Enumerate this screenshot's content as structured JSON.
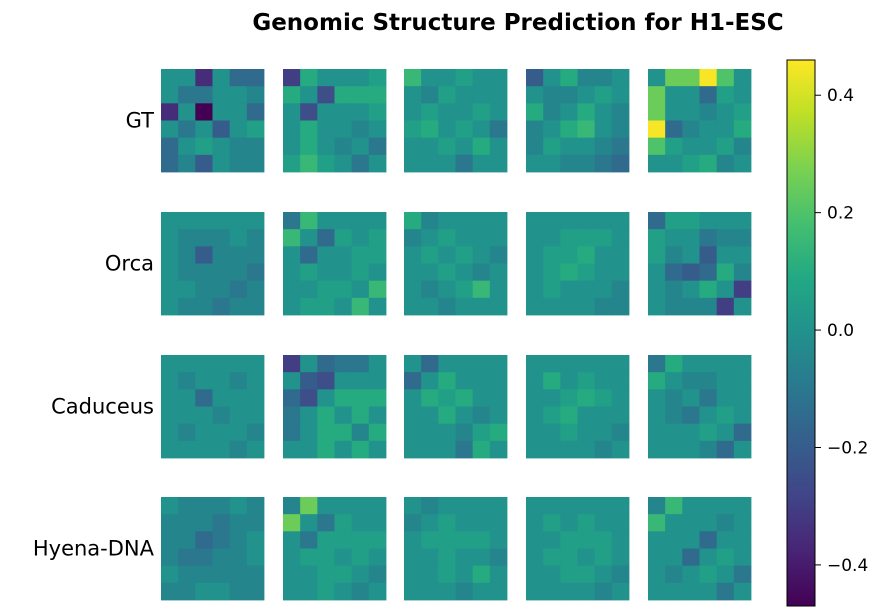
{
  "chart_data": {
    "type": "heatmap",
    "title": "Genomic Structure Prediction for H1-ESC",
    "rows": [
      "GT",
      "Orca",
      "Caduceus",
      "Hyena-DNA"
    ],
    "columns": 5,
    "grid_size": 6,
    "colormap": "viridis",
    "vmin": -0.47,
    "vmax": 0.46,
    "colorbar": {
      "ticks": [
        0.4,
        0.2,
        0.0,
        -0.2,
        -0.4
      ],
      "tick_labels": [
        "0.4",
        "0.2",
        "0.0",
        "−0.2",
        "−0.4"
      ]
    },
    "matrices": [
      [
        [
          [
            0.0,
            0.0,
            -0.35,
            0.0,
            -0.15,
            -0.15
          ],
          [
            0.0,
            -0.1,
            -0.1,
            0.0,
            0.0,
            -0.05
          ],
          [
            -0.35,
            0.0,
            -0.47,
            0.0,
            0.0,
            -0.15
          ],
          [
            0.0,
            -0.1,
            0.0,
            -0.2,
            0.0,
            0.05
          ],
          [
            -0.15,
            0.0,
            0.05,
            0.0,
            -0.05,
            -0.05
          ],
          [
            -0.15,
            -0.05,
            -0.2,
            0.0,
            -0.05,
            -0.05
          ]
        ],
        [
          [
            -0.3,
            0.1,
            0.0,
            0.0,
            0.0,
            0.05
          ],
          [
            0.1,
            0.0,
            -0.25,
            0.1,
            0.1,
            0.1
          ],
          [
            0.0,
            -0.25,
            0.0,
            0.0,
            0.0,
            0.05
          ],
          [
            0.0,
            0.1,
            0.0,
            0.0,
            -0.05,
            0.0
          ],
          [
            0.0,
            0.1,
            0.0,
            -0.05,
            0.0,
            -0.1
          ],
          [
            0.05,
            0.15,
            0.05,
            0.0,
            -0.1,
            0.0
          ]
        ],
        [
          [
            0.15,
            0.0,
            0.0,
            0.05,
            0.0,
            0.0
          ],
          [
            0.0,
            -0.05,
            0.05,
            0.0,
            0.0,
            0.0
          ],
          [
            0.0,
            0.05,
            0.0,
            0.0,
            0.05,
            0.0
          ],
          [
            0.05,
            0.1,
            0.0,
            0.05,
            0.0,
            -0.1
          ],
          [
            0.0,
            0.0,
            0.05,
            0.0,
            0.1,
            0.0
          ],
          [
            0.0,
            0.0,
            0.0,
            -0.1,
            0.0,
            0.0
          ]
        ],
        [
          [
            -0.2,
            0.0,
            0.1,
            -0.05,
            -0.05,
            0.0
          ],
          [
            0.0,
            -0.05,
            -0.05,
            0.0,
            0.05,
            0.0
          ],
          [
            0.1,
            -0.05,
            0.0,
            0.1,
            0.0,
            -0.05
          ],
          [
            -0.05,
            0.0,
            0.1,
            0.15,
            0.0,
            -0.05
          ],
          [
            -0.05,
            0.05,
            0.0,
            0.0,
            -0.05,
            -0.1
          ],
          [
            0.0,
            0.0,
            -0.05,
            -0.05,
            -0.1,
            -0.15
          ]
        ],
        [
          [
            0.0,
            0.25,
            0.25,
            0.45,
            0.2,
            0.0
          ],
          [
            0.25,
            0.0,
            0.0,
            -0.15,
            0.05,
            0.0
          ],
          [
            0.25,
            0.0,
            0.0,
            -0.05,
            0.0,
            0.05
          ],
          [
            0.45,
            -0.15,
            -0.05,
            0.0,
            0.0,
            0.1
          ],
          [
            0.2,
            0.05,
            0.0,
            0.0,
            0.05,
            -0.05
          ],
          [
            0.0,
            0.0,
            0.05,
            0.1,
            -0.05,
            0.0
          ]
        ]
      ],
      [
        [
          [
            0.0,
            0.0,
            0.0,
            0.0,
            0.0,
            0.0
          ],
          [
            0.0,
            -0.05,
            -0.05,
            -0.05,
            0.0,
            -0.05
          ],
          [
            0.0,
            -0.05,
            -0.2,
            -0.05,
            -0.05,
            -0.05
          ],
          [
            0.0,
            -0.05,
            -0.05,
            -0.05,
            -0.05,
            -0.1
          ],
          [
            0.0,
            0.0,
            -0.05,
            -0.05,
            -0.1,
            -0.05
          ],
          [
            0.0,
            -0.05,
            -0.05,
            -0.1,
            -0.05,
            -0.05
          ]
        ],
        [
          [
            -0.1,
            0.15,
            0.0,
            0.0,
            0.0,
            0.0
          ],
          [
            0.15,
            0.0,
            -0.15,
            0.05,
            0.0,
            0.05
          ],
          [
            0.0,
            -0.15,
            0.0,
            0.0,
            0.05,
            0.05
          ],
          [
            0.0,
            0.05,
            0.0,
            0.0,
            0.05,
            0.0
          ],
          [
            0.0,
            0.0,
            0.05,
            0.05,
            0.0,
            0.15
          ],
          [
            0.0,
            0.05,
            0.05,
            0.0,
            0.15,
            0.0
          ]
        ],
        [
          [
            0.1,
            -0.05,
            0.0,
            0.0,
            0.0,
            0.0
          ],
          [
            -0.05,
            0.0,
            0.05,
            0.0,
            0.0,
            0.0
          ],
          [
            0.0,
            0.05,
            0.0,
            0.05,
            0.0,
            -0.05
          ],
          [
            0.0,
            0.0,
            0.05,
            0.0,
            -0.05,
            0.0
          ],
          [
            0.0,
            -0.05,
            0.0,
            0.05,
            0.15,
            0.0
          ],
          [
            0.0,
            0.0,
            -0.05,
            0.0,
            0.0,
            0.0
          ]
        ],
        [
          [
            0.0,
            0.0,
            0.0,
            0.0,
            0.0,
            0.0
          ],
          [
            0.0,
            0.0,
            0.05,
            0.05,
            0.05,
            0.0
          ],
          [
            0.0,
            0.05,
            0.05,
            0.1,
            0.0,
            0.0
          ],
          [
            0.0,
            0.05,
            0.1,
            0.05,
            0.0,
            0.0
          ],
          [
            0.0,
            0.05,
            0.0,
            0.0,
            0.0,
            -0.05
          ],
          [
            0.0,
            0.0,
            0.0,
            0.0,
            -0.05,
            -0.05
          ]
        ],
        [
          [
            -0.15,
            0.05,
            0.05,
            0.0,
            0.0,
            0.0
          ],
          [
            0.05,
            0.0,
            0.0,
            -0.1,
            -0.05,
            -0.05
          ],
          [
            0.05,
            -0.05,
            0.0,
            -0.2,
            0.0,
            0.0
          ],
          [
            0.0,
            -0.15,
            -0.2,
            -0.15,
            0.1,
            -0.05
          ],
          [
            0.0,
            -0.05,
            0.0,
            0.1,
            0.0,
            -0.3
          ],
          [
            0.0,
            -0.05,
            -0.05,
            -0.05,
            -0.3,
            0.0
          ]
        ]
      ],
      [
        [
          [
            0.0,
            0.0,
            0.0,
            0.0,
            0.0,
            0.0
          ],
          [
            0.0,
            -0.05,
            0.0,
            0.0,
            -0.05,
            0.0
          ],
          [
            0.0,
            0.0,
            -0.15,
            0.0,
            0.0,
            0.0
          ],
          [
            0.0,
            0.0,
            0.0,
            -0.05,
            0.0,
            0.0
          ],
          [
            0.0,
            -0.05,
            0.0,
            0.0,
            0.0,
            -0.05
          ],
          [
            0.0,
            0.0,
            0.0,
            0.0,
            -0.05,
            0.0
          ]
        ],
        [
          [
            -0.3,
            0.0,
            -0.15,
            -0.1,
            -0.1,
            0.0
          ],
          [
            0.0,
            -0.2,
            -0.25,
            0.0,
            0.0,
            0.0
          ],
          [
            -0.15,
            -0.25,
            0.0,
            0.1,
            0.1,
            0.1
          ],
          [
            -0.1,
            0.0,
            0.1,
            0.0,
            0.1,
            0.0
          ],
          [
            -0.1,
            0.0,
            0.1,
            0.1,
            -0.05,
            0.1
          ],
          [
            0.0,
            0.0,
            0.1,
            0.0,
            0.1,
            0.0
          ]
        ],
        [
          [
            0.0,
            -0.15,
            0.0,
            0.0,
            0.0,
            0.0
          ],
          [
            -0.15,
            0.0,
            0.1,
            0.0,
            0.0,
            0.0
          ],
          [
            0.0,
            0.1,
            0.05,
            0.1,
            0.0,
            0.0
          ],
          [
            0.0,
            0.0,
            0.1,
            0.0,
            -0.05,
            0.0
          ],
          [
            0.0,
            0.0,
            0.0,
            -0.05,
            0.05,
            0.1
          ],
          [
            0.0,
            0.0,
            0.0,
            -0.1,
            0.1,
            0.0
          ]
        ],
        [
          [
            0.0,
            0.0,
            0.0,
            0.0,
            0.0,
            0.0
          ],
          [
            0.0,
            0.1,
            0.0,
            0.05,
            0.0,
            0.0
          ],
          [
            0.0,
            0.0,
            0.05,
            0.1,
            0.05,
            0.0
          ],
          [
            0.0,
            0.05,
            0.1,
            0.0,
            0.0,
            0.0
          ],
          [
            0.0,
            0.0,
            0.05,
            0.0,
            0.0,
            -0.05
          ],
          [
            0.0,
            0.0,
            0.0,
            0.0,
            -0.05,
            0.0
          ]
        ],
        [
          [
            -0.1,
            0.1,
            0.0,
            0.0,
            0.0,
            0.0
          ],
          [
            0.1,
            0.0,
            -0.05,
            -0.05,
            0.0,
            0.0
          ],
          [
            0.0,
            -0.05,
            0.0,
            -0.1,
            0.0,
            0.0
          ],
          [
            0.0,
            -0.05,
            -0.1,
            0.0,
            0.05,
            0.0
          ],
          [
            0.0,
            0.0,
            0.0,
            0.05,
            0.0,
            -0.15
          ],
          [
            0.0,
            0.0,
            0.0,
            -0.05,
            -0.15,
            0.0
          ]
        ]
      ],
      [
        [
          [
            0.0,
            -0.05,
            -0.05,
            -0.05,
            0.0,
            -0.05
          ],
          [
            -0.05,
            -0.05,
            -0.05,
            -0.1,
            -0.05,
            -0.05
          ],
          [
            -0.05,
            -0.05,
            -0.15,
            -0.1,
            -0.05,
            0.0
          ],
          [
            -0.05,
            -0.1,
            -0.1,
            -0.05,
            -0.05,
            0.0
          ],
          [
            0.0,
            -0.05,
            -0.05,
            -0.05,
            -0.05,
            -0.05
          ],
          [
            -0.05,
            -0.05,
            0.0,
            0.0,
            -0.05,
            -0.05
          ]
        ],
        [
          [
            -0.05,
            0.25,
            0.0,
            0.0,
            0.0,
            0.0
          ],
          [
            0.25,
            0.0,
            -0.1,
            0.05,
            0.0,
            0.0
          ],
          [
            0.0,
            -0.1,
            0.05,
            0.05,
            0.05,
            0.05
          ],
          [
            0.0,
            0.05,
            0.05,
            0.0,
            0.05,
            0.0
          ],
          [
            0.0,
            0.0,
            0.05,
            0.05,
            0.0,
            -0.05
          ],
          [
            0.0,
            0.0,
            0.05,
            0.0,
            -0.05,
            0.0
          ]
        ],
        [
          [
            0.0,
            -0.05,
            0.0,
            0.0,
            0.0,
            0.0
          ],
          [
            -0.05,
            0.0,
            0.05,
            0.0,
            0.0,
            0.0
          ],
          [
            0.0,
            0.05,
            0.05,
            0.05,
            0.05,
            0.0
          ],
          [
            0.0,
            0.0,
            0.05,
            0.0,
            0.0,
            -0.05
          ],
          [
            0.0,
            0.0,
            0.05,
            0.0,
            0.1,
            0.0
          ],
          [
            0.0,
            0.0,
            0.0,
            -0.05,
            0.0,
            0.0
          ]
        ],
        [
          [
            0.0,
            0.0,
            0.0,
            0.0,
            0.0,
            0.0
          ],
          [
            0.0,
            0.05,
            0.0,
            0.05,
            0.0,
            0.0
          ],
          [
            0.0,
            0.0,
            0.05,
            0.05,
            0.05,
            0.0
          ],
          [
            0.0,
            0.05,
            0.05,
            0.0,
            0.05,
            0.0
          ],
          [
            0.0,
            0.0,
            0.05,
            0.05,
            0.0,
            -0.05
          ],
          [
            0.0,
            0.0,
            0.0,
            0.0,
            -0.05,
            0.0
          ]
        ],
        [
          [
            -0.05,
            0.15,
            0.0,
            0.0,
            0.0,
            0.0
          ],
          [
            0.15,
            0.0,
            0.0,
            0.0,
            -0.05,
            0.0
          ],
          [
            0.0,
            0.0,
            0.0,
            -0.15,
            0.0,
            0.0
          ],
          [
            0.0,
            0.0,
            -0.15,
            0.0,
            0.05,
            0.0
          ],
          [
            0.0,
            -0.05,
            0.0,
            0.05,
            0.0,
            -0.1
          ],
          [
            0.0,
            0.0,
            0.0,
            0.0,
            -0.1,
            0.0
          ]
        ]
      ]
    ]
  }
}
